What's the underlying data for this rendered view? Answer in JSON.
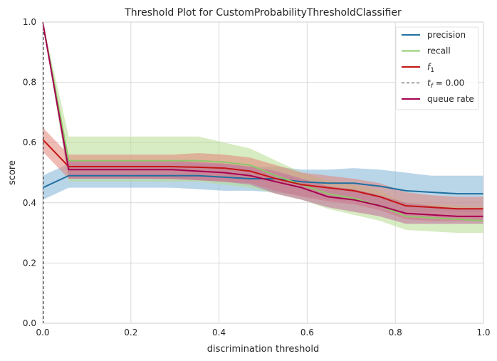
{
  "chart_data": {
    "type": "line",
    "title": "Threshold Plot for CustomProbabilityThresholdClassifier",
    "xlabel": "discrimination threshold",
    "ylabel": "score",
    "xlim": [
      0,
      1
    ],
    "ylim": [
      0,
      1
    ],
    "xticks": [
      "0.0",
      "0.2",
      "0.4",
      "0.6",
      "0.8",
      "1.0"
    ],
    "yticks": [
      "0.0",
      "0.2",
      "0.4",
      "0.6",
      "0.8",
      "1.0"
    ],
    "grid": true,
    "legend_position": "top-right",
    "threshold_line": {
      "label": "t_f = 0.00",
      "x": 0.0,
      "color": "#262626"
    },
    "x": [
      0,
      0.059,
      0.118,
      0.176,
      0.235,
      0.294,
      0.353,
      0.412,
      0.471,
      0.529,
      0.588,
      0.647,
      0.706,
      0.765,
      0.824,
      0.882,
      0.941,
      1.0
    ],
    "series": [
      {
        "name": "precision",
        "color": "#1f6f9f",
        "band_color": "#7fb2d5",
        "values": [
          0.45,
          0.49,
          0.49,
          0.49,
          0.49,
          0.49,
          0.49,
          0.485,
          0.48,
          0.48,
          0.47,
          0.465,
          0.465,
          0.455,
          0.44,
          0.435,
          0.43,
          0.43
        ],
        "lower": [
          0.41,
          0.45,
          0.45,
          0.45,
          0.45,
          0.45,
          0.445,
          0.44,
          0.44,
          0.435,
          0.425,
          0.41,
          0.405,
          0.39,
          0.37,
          0.37,
          0.37,
          0.37
        ],
        "upper": [
          0.49,
          0.53,
          0.53,
          0.53,
          0.53,
          0.53,
          0.53,
          0.53,
          0.52,
          0.52,
          0.51,
          0.51,
          0.515,
          0.51,
          0.5,
          0.49,
          0.49,
          0.49
        ]
      },
      {
        "name": "recall",
        "color": "#8dc86a",
        "band_color": "#b6dc8f",
        "values": [
          1.0,
          0.54,
          0.54,
          0.54,
          0.54,
          0.54,
          0.54,
          0.535,
          0.525,
          0.49,
          0.46,
          0.43,
          0.415,
          0.39,
          0.355,
          0.35,
          0.345,
          0.34
        ],
        "lower": [
          1.0,
          0.47,
          0.47,
          0.47,
          0.47,
          0.47,
          0.47,
          0.46,
          0.45,
          0.43,
          0.41,
          0.38,
          0.36,
          0.34,
          0.31,
          0.305,
          0.3,
          0.3
        ],
        "upper": [
          1.0,
          0.62,
          0.62,
          0.62,
          0.62,
          0.62,
          0.62,
          0.6,
          0.58,
          0.54,
          0.5,
          0.475,
          0.46,
          0.44,
          0.4,
          0.395,
          0.39,
          0.385
        ]
      },
      {
        "name": "f_1",
        "color": "#c41414",
        "band_color": "#e28479",
        "values": [
          0.61,
          0.52,
          0.52,
          0.52,
          0.52,
          0.52,
          0.518,
          0.515,
          0.505,
          0.48,
          0.46,
          0.45,
          0.44,
          0.42,
          0.39,
          0.385,
          0.38,
          0.38
        ],
        "lower": [
          0.57,
          0.48,
          0.48,
          0.48,
          0.48,
          0.478,
          0.475,
          0.47,
          0.465,
          0.44,
          0.42,
          0.405,
          0.395,
          0.375,
          0.345,
          0.34,
          0.34,
          0.34
        ],
        "upper": [
          0.65,
          0.56,
          0.56,
          0.56,
          0.56,
          0.56,
          0.565,
          0.56,
          0.55,
          0.525,
          0.5,
          0.49,
          0.48,
          0.465,
          0.435,
          0.425,
          0.42,
          0.42
        ]
      },
      {
        "name": "queue rate",
        "color": "#a5004f",
        "band_color": "#c06a9b",
        "values": [
          1.0,
          0.51,
          0.51,
          0.51,
          0.51,
          0.51,
          0.505,
          0.5,
          0.49,
          0.47,
          0.45,
          0.42,
          0.41,
          0.39,
          0.365,
          0.36,
          0.355,
          0.355
        ],
        "lower": [
          1.0,
          0.48,
          0.48,
          0.48,
          0.48,
          0.48,
          0.475,
          0.47,
          0.46,
          0.43,
          0.41,
          0.385,
          0.37,
          0.355,
          0.33,
          0.33,
          0.33,
          0.33
        ],
        "upper": [
          1.0,
          0.54,
          0.54,
          0.54,
          0.54,
          0.54,
          0.535,
          0.53,
          0.52,
          0.505,
          0.48,
          0.455,
          0.445,
          0.425,
          0.4,
          0.39,
          0.38,
          0.38
        ]
      }
    ]
  }
}
